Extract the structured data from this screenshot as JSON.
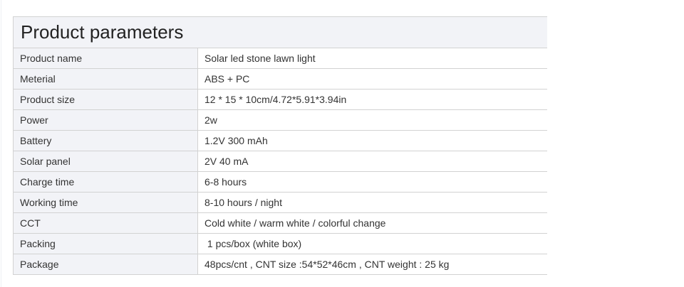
{
  "title": "Product parameters",
  "rows": [
    {
      "label": "Product name",
      "value": "Solar led stone lawn light"
    },
    {
      "label": "Meterial",
      "value": "ABS + PC"
    },
    {
      "label": "Product size",
      "value": "12 * 15 * 10cm/4.72*5.91*3.94in"
    },
    {
      "label": "Power",
      "value": "2w"
    },
    {
      "label": "Battery",
      "value": "1.2V 300 mAh"
    },
    {
      "label": "Solar panel",
      "value": "2V 40 mA"
    },
    {
      "label": "Charge time",
      "value": "6-8 hours"
    },
    {
      "label": "Working time",
      "value": "8-10 hours / night"
    },
    {
      "label": "CCT",
      "value": "Cold white / warm white / colorful change"
    },
    {
      "label": "Packing",
      "value": " 1 pcs/box (white box)"
    },
    {
      "label": "Package",
      "value": "48pcs/cnt , CNT size :54*52*46cm , CNT weight : 25 kg"
    }
  ]
}
